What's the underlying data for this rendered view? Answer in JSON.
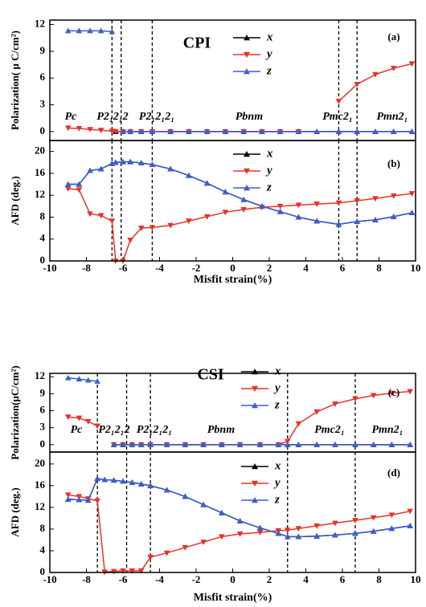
{
  "chart_data": [
    {
      "type": "line",
      "title": "CPI",
      "panel_label": "(a)",
      "ylabel": "Polarization( μ C/cm²)",
      "x": [
        -9,
        -8.4,
        -7.8,
        -7.2,
        -6.6,
        -6.4,
        -6,
        -5.6,
        -5,
        -4.4,
        -3.4,
        -2.4,
        -1.4,
        -0.4,
        0.6,
        1.6,
        2.6,
        3.6,
        4.6,
        5.8,
        6.8,
        7.8,
        8.8,
        9.8
      ],
      "series": [
        {
          "name": "x",
          "color": "#000000",
          "values": [
            null,
            null,
            null,
            null,
            null,
            0,
            0,
            0,
            0,
            0,
            0,
            0,
            0,
            0,
            0,
            0,
            0,
            0,
            0,
            0,
            0,
            0,
            0,
            0
          ]
        },
        {
          "name": "y",
          "color": "#e8312a",
          "values": [
            0.4,
            0.35,
            0.25,
            0.15,
            0.05,
            0,
            0,
            0,
            0,
            0,
            0,
            0,
            0,
            0,
            0,
            0,
            0,
            0,
            null,
            3.4,
            5.3,
            6.4,
            7.1,
            7.6
          ]
        },
        {
          "name": "z",
          "color": "#3a5fcd",
          "values": [
            11.3,
            11.3,
            11.3,
            11.3,
            11.2,
            null,
            0,
            0,
            0,
            0,
            0,
            0,
            0,
            0,
            0,
            0,
            0,
            0,
            0,
            0,
            0,
            0,
            0,
            0
          ]
        }
      ],
      "xlim": [
        -10,
        10
      ],
      "ylim": [
        -1,
        12.5
      ],
      "yticks": [
        0,
        3,
        6,
        9,
        12
      ],
      "boundaries": [
        -6.6,
        -6.1,
        -4.4,
        5.8,
        6.8
      ],
      "phases": [
        "Pc",
        "P2₁2₁2",
        "P2₁2₁2₁",
        "Pbnm",
        "Pmc2₁",
        "Pmn2₁"
      ]
    },
    {
      "type": "line",
      "panel_label": "(b)",
      "ylabel": "AFD (deg.)",
      "xlabel": "Misfit strain(%)",
      "x": [
        -9,
        -8.4,
        -7.8,
        -7.2,
        -6.6,
        -6.4,
        -6,
        -5.6,
        -5,
        -4.4,
        -3.4,
        -2.4,
        -1.4,
        -0.4,
        0.6,
        1.6,
        2.6,
        3.6,
        4.6,
        5.8,
        6.8,
        7.8,
        8.8,
        9.8
      ],
      "series": [
        {
          "name": "x",
          "color": "#000000",
          "values": [
            14,
            14,
            16.5,
            16.8,
            17.8,
            18,
            18.1,
            18.1,
            17.9,
            17.6,
            16.8,
            15.6,
            14.2,
            12.6,
            11.2,
            10,
            9,
            8,
            7.3,
            6.7,
            7.2,
            7.5,
            8.1,
            8.8
          ]
        },
        {
          "name": "y",
          "color": "#e8312a",
          "values": [
            13.2,
            13,
            8.6,
            8.3,
            7.3,
            0,
            0,
            3.8,
            6,
            6.1,
            6.5,
            7.3,
            8.1,
            8.9,
            9.4,
            9.8,
            10,
            10.2,
            10.4,
            10.6,
            11,
            11.4,
            11.9,
            12.3
          ]
        },
        {
          "name": "z",
          "color": "#3a5fcd",
          "values": [
            14,
            14,
            16.5,
            16.8,
            17.8,
            18,
            18.1,
            18.1,
            17.9,
            17.6,
            16.8,
            15.6,
            14.2,
            12.6,
            11.2,
            10,
            9,
            8,
            7.3,
            6.7,
            7.2,
            7.5,
            8.1,
            8.8
          ]
        }
      ],
      "xlim": [
        -10,
        10
      ],
      "xticks": [
        -10,
        -8,
        -6,
        -4,
        -2,
        0,
        2,
        4,
        6,
        8,
        10
      ],
      "ylim": [
        0,
        22
      ],
      "yticks": [
        0,
        4,
        8,
        12,
        16,
        20
      ],
      "boundaries": [
        -6.6,
        -6.1,
        -4.4,
        5.8,
        6.8
      ]
    },
    {
      "type": "line",
      "title": "CSI",
      "panel_label": "(c)",
      "ylabel": "Polarization(μC/cm²)",
      "x": [
        -9,
        -8.4,
        -7.9,
        -7.4,
        -7,
        -6.5,
        -6,
        -5.5,
        -5,
        -4.5,
        -3.6,
        -2.6,
        -1.6,
        -0.6,
        0.4,
        1.5,
        2.5,
        3,
        3.6,
        4.6,
        5.6,
        6.7,
        7.7,
        8.7,
        9.7
      ],
      "series": [
        {
          "name": "x",
          "color": "#000000",
          "values": [
            null,
            null,
            null,
            null,
            null,
            0,
            0,
            0,
            0,
            0,
            0,
            0,
            0,
            0,
            0,
            0,
            0,
            0,
            0,
            0,
            0,
            0,
            0,
            0,
            0
          ]
        },
        {
          "name": "y",
          "color": "#e8312a",
          "values": [
            4.9,
            4.7,
            4.1,
            3.3,
            null,
            0,
            0,
            0,
            0,
            0,
            0,
            0,
            0,
            0,
            0,
            0,
            0,
            0.6,
            3.7,
            5.8,
            7.2,
            8.1,
            8.7,
            9.1,
            9.4
          ]
        },
        {
          "name": "z",
          "color": "#3a5fcd",
          "values": [
            11.8,
            11.6,
            11.4,
            11.2,
            null,
            0,
            0,
            0,
            0,
            0,
            0,
            0,
            0,
            0,
            0,
            0,
            0,
            0,
            0,
            0,
            0,
            0,
            0,
            0,
            0
          ]
        }
      ],
      "xlim": [
        -10,
        10
      ],
      "ylim": [
        -1.3,
        12.6
      ],
      "yticks": [
        0,
        3,
        6,
        9,
        12
      ],
      "boundaries": [
        -7.4,
        -5.8,
        -4.5,
        3.0,
        6.7
      ],
      "phases": [
        "Pc",
        "P2₁2₁2",
        "P2₁2₁2₁",
        "Pbnm",
        "Pmc2₁",
        "Pmn2₁"
      ]
    },
    {
      "type": "line",
      "panel_label": "(d)",
      "ylabel": "AFD (deg.)",
      "xlabel": "Misfit strain(%)",
      "x": [
        -9,
        -8.4,
        -7.9,
        -7.4,
        -7,
        -6.5,
        -6,
        -5.5,
        -5,
        -4.5,
        -3.6,
        -2.6,
        -1.6,
        -0.6,
        0.4,
        1.5,
        2.5,
        3,
        3.6,
        4.6,
        5.6,
        6.7,
        7.7,
        8.7,
        9.7
      ],
      "series": [
        {
          "name": "x",
          "color": "#000000",
          "values": [
            13.5,
            13.4,
            13.3,
            17.3,
            17.1,
            17,
            16.8,
            16.6,
            16.3,
            16,
            15.2,
            14,
            12.5,
            11,
            9.5,
            8.2,
            7.2,
            6.6,
            6.6,
            6.7,
            6.9,
            7.2,
            7.6,
            8.1,
            8.6
          ]
        },
        {
          "name": "y",
          "color": "#e8312a",
          "values": [
            14.3,
            14,
            13.6,
            13.2,
            0.1,
            0.2,
            0.3,
            0.3,
            0.3,
            2.8,
            3.6,
            4.6,
            5.6,
            6.6,
            7.1,
            7.4,
            7.7,
            7.8,
            8.1,
            8.6,
            9.1,
            9.6,
            10.1,
            10.6,
            11.3
          ]
        },
        {
          "name": "z",
          "color": "#3a5fcd",
          "values": [
            13.5,
            13.4,
            13.3,
            17.3,
            17.1,
            17,
            16.8,
            16.6,
            16.3,
            16,
            15.2,
            14,
            12.5,
            11,
            9.5,
            8.2,
            7.2,
            6.6,
            6.6,
            6.7,
            6.9,
            7.2,
            7.6,
            8.1,
            8.6
          ]
        }
      ],
      "xlim": [
        -10,
        10
      ],
      "xticks": [
        -10,
        -8,
        -6,
        -4,
        -2,
        0,
        2,
        4,
        6,
        8,
        10
      ],
      "ylim": [
        0,
        22.2
      ],
      "yticks": [
        0,
        4,
        8,
        12,
        16,
        20
      ],
      "boundaries": [
        -7.4,
        -5.8,
        -4.5,
        3.0,
        6.7
      ]
    }
  ]
}
